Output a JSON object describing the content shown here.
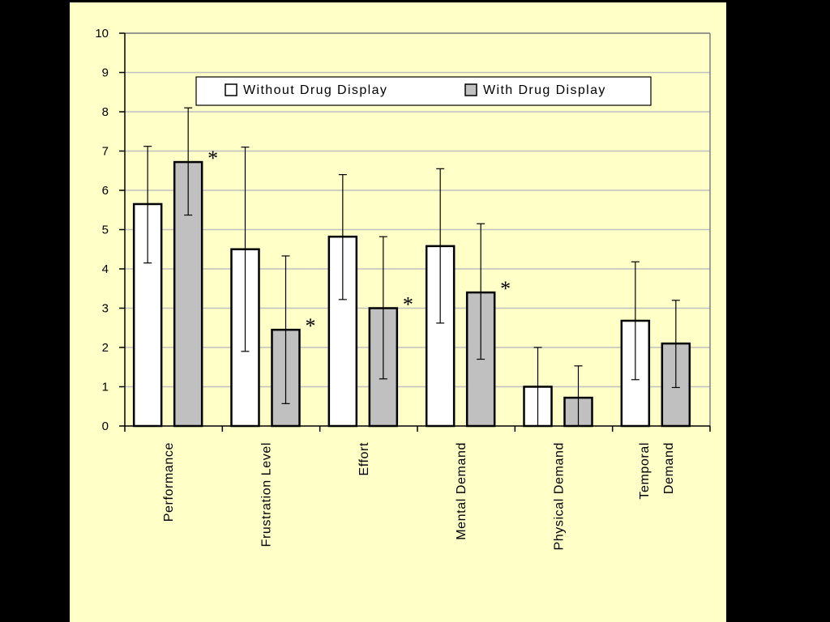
{
  "colors": {
    "background": "#000000",
    "panel": "#ffffc8",
    "plot_area": "#ffffc8",
    "gridline": "#c0c0c0",
    "bar_without": "#ffffff",
    "bar_with": "#c0c0c0",
    "outline": "#000000"
  },
  "chart_data": {
    "type": "bar",
    "categories": [
      [
        "Performance"
      ],
      [
        "Frustration Level"
      ],
      [
        "Effort"
      ],
      [
        "Mental Demand"
      ],
      [
        "Physical Demand"
      ],
      [
        "Temporal",
        "Demand"
      ]
    ],
    "series": [
      {
        "name": "Without Drug Display",
        "values": [
          5.65,
          4.5,
          4.82,
          4.58,
          1.0,
          2.68
        ],
        "error_low": [
          4.15,
          1.9,
          3.22,
          2.62,
          0.0,
          1.18
        ],
        "error_high": [
          7.12,
          7.1,
          6.4,
          6.55,
          2.0,
          4.18
        ]
      },
      {
        "name": "With Drug Display",
        "values": [
          6.72,
          2.45,
          3.0,
          3.4,
          0.72,
          2.1
        ],
        "error_low": [
          5.37,
          0.57,
          1.2,
          1.7,
          0.0,
          0.98
        ],
        "error_high": [
          8.1,
          4.33,
          4.82,
          5.15,
          1.53,
          3.2
        ]
      }
    ],
    "significance_markers": [
      {
        "category_index": 0,
        "label": "*"
      },
      {
        "category_index": 1,
        "label": "*"
      },
      {
        "category_index": 2,
        "label": "*"
      },
      {
        "category_index": 3,
        "label": "*"
      }
    ],
    "ylim": [
      0,
      10
    ],
    "yticks": [
      "0",
      "1",
      "2",
      "3",
      "4",
      "5",
      "6",
      "7",
      "8",
      "9",
      "10"
    ],
    "grid": true,
    "legend_position": "top",
    "title": "",
    "xlabel": "",
    "ylabel": ""
  }
}
